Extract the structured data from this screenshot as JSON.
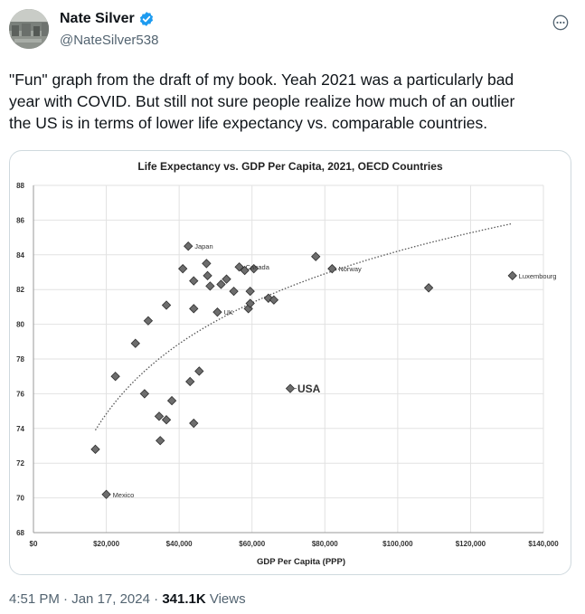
{
  "author": {
    "name": "Nate Silver",
    "handle": "@NateSilver538"
  },
  "tweet": {
    "text_lines": [
      "\"Fun\" graph from the draft of my book. Yeah 2021 was a particularly bad",
      "year with COVID. But still not sure people realize how much of an outlier",
      "the US is in terms of lower life expectancy vs. comparable countries."
    ]
  },
  "meta": {
    "time": "4:51 PM",
    "sep1": " · ",
    "date": "Jan 17, 2024",
    "sep2": " · ",
    "views_count": "341.1K",
    "views_label": " Views"
  },
  "icons": {
    "verified": "verified-badge-icon",
    "more": "more-options-icon"
  },
  "colors": {
    "verified": "#1d9bf0",
    "marker": "#6d6d6d"
  },
  "chart_data": {
    "type": "scatter",
    "title": "Life Expectancy vs. GDP Per Capita, 2021, OECD Countries",
    "xlabel": "GDP Per Capita (PPP)",
    "ylabel": "",
    "xlim": [
      0,
      140000
    ],
    "ylim": [
      68,
      88
    ],
    "x_ticks": [
      0,
      20000,
      40000,
      60000,
      80000,
      100000,
      120000,
      140000
    ],
    "x_tick_labels": [
      "$0",
      "$20,000",
      "$40,000",
      "$60,000",
      "$80,000",
      "$100,000",
      "$120,000",
      "$140,000"
    ],
    "y_ticks": [
      68,
      70,
      72,
      74,
      76,
      78,
      80,
      82,
      84,
      86,
      88
    ],
    "y_tick_labels": [
      "68",
      "70",
      "72",
      "74",
      "76",
      "78",
      "80",
      "82",
      "84",
      "86",
      "88"
    ],
    "grid": "on",
    "points": [
      {
        "x": 17000,
        "y": 72.8
      },
      {
        "x": 20000,
        "y": 70.2,
        "label": "Mexico"
      },
      {
        "x": 22500,
        "y": 77.0
      },
      {
        "x": 28000,
        "y": 78.9
      },
      {
        "x": 30500,
        "y": 76.0
      },
      {
        "x": 31500,
        "y": 80.2
      },
      {
        "x": 34500,
        "y": 74.7
      },
      {
        "x": 34800,
        "y": 73.3
      },
      {
        "x": 36500,
        "y": 74.5
      },
      {
        "x": 36500,
        "y": 81.1
      },
      {
        "x": 38000,
        "y": 75.6
      },
      {
        "x": 41000,
        "y": 83.2
      },
      {
        "x": 42500,
        "y": 84.5,
        "label": "Japan"
      },
      {
        "x": 43000,
        "y": 76.7
      },
      {
        "x": 44000,
        "y": 80.9
      },
      {
        "x": 44000,
        "y": 82.5
      },
      {
        "x": 44000,
        "y": 74.3
      },
      {
        "x": 45500,
        "y": 77.3
      },
      {
        "x": 47500,
        "y": 83.5
      },
      {
        "x": 47800,
        "y": 82.8
      },
      {
        "x": 48500,
        "y": 82.2
      },
      {
        "x": 50500,
        "y": 80.7,
        "label": "UK"
      },
      {
        "x": 51500,
        "y": 82.3
      },
      {
        "x": 53000,
        "y": 82.6
      },
      {
        "x": 55000,
        "y": 81.9
      },
      {
        "x": 56500,
        "y": 83.3,
        "label": "Canada"
      },
      {
        "x": 58000,
        "y": 83.1
      },
      {
        "x": 59000,
        "y": 80.9
      },
      {
        "x": 59500,
        "y": 81.2
      },
      {
        "x": 59500,
        "y": 81.9
      },
      {
        "x": 60500,
        "y": 83.2
      },
      {
        "x": 64500,
        "y": 81.5
      },
      {
        "x": 66000,
        "y": 81.4
      },
      {
        "x": 70500,
        "y": 76.3,
        "label": "USA",
        "emphasis": true
      },
      {
        "x": 77500,
        "y": 83.9
      },
      {
        "x": 82000,
        "y": 83.2,
        "label": "Norway"
      },
      {
        "x": 108500,
        "y": 82.1
      },
      {
        "x": 131500,
        "y": 82.8,
        "label": "Luxembourg"
      }
    ],
    "trendline": {
      "style": "dotted",
      "form": "logarithmic",
      "x_range": [
        17000,
        131500
      ],
      "y_start": 73.9,
      "y_end": 85.8
    }
  }
}
